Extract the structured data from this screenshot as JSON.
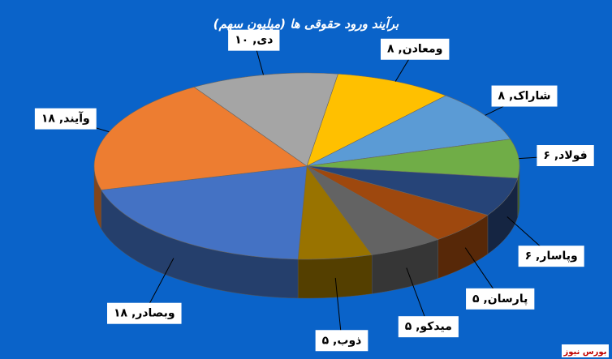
{
  "chart_data": {
    "type": "pie3d",
    "title": "برآیند ورود حقوقی ها (میلیون سهم)",
    "values": [
      10,
      8,
      8,
      6,
      6,
      5,
      5,
      5,
      18,
      18
    ],
    "value_labels": [
      "دی, ۱۰",
      "ومعادن, ۸",
      "شاراک, ۸",
      "فولاد, ۶",
      "وپاسار, ۶",
      "پارسان, ۵",
      "میدکو, ۵",
      "ذوب, ۵",
      "وبصادر, ۱۸",
      "وآیند, ۱۸"
    ],
    "colors": [
      "#a5a5a5",
      "#ffc000",
      "#5b9bd5",
      "#70ad47",
      "#264478",
      "#9e480e",
      "#636363",
      "#997300",
      "#4472c4",
      "#ed7d31"
    ],
    "watermark": "بورس نیوز"
  }
}
